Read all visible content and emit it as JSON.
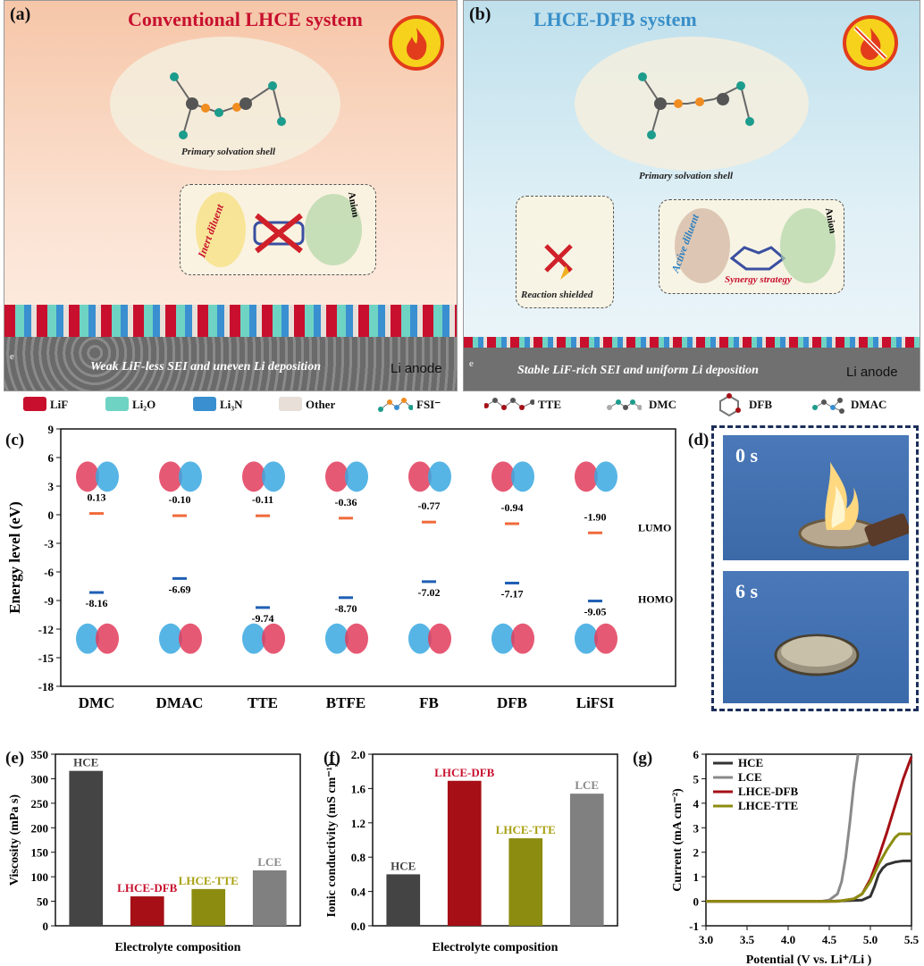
{
  "panel_a": {
    "label": "(a)",
    "title": "Conventional LHCE system",
    "shell_caption": "Primary solvation shell",
    "diluent_label": "Inert diluent",
    "anion_label": "Anion",
    "sei_text": "Weak LiF-less SEI and uneven Li deposition",
    "electron": "e",
    "anode_label": "Li anode"
  },
  "panel_b": {
    "label": "(b)",
    "title": "LHCE-DFB system",
    "shell_caption": "Primary solvation shell",
    "shielded_label": "Reaction shielded",
    "diluent_label": "Active diluent",
    "anion_label": "Anion",
    "synergy_label": "Synergy strategy",
    "sei_text": "Stable LiF-rich SEI and uniform Li deposition",
    "electron": "e",
    "anode_label": "Li anode"
  },
  "legend": [
    {
      "label": "LiF",
      "color": "#c8102e"
    },
    {
      "label": "Li₂O",
      "color": "#6fd3c4"
    },
    {
      "label": "Li₃N",
      "color": "#3a8fd0"
    },
    {
      "label": "Other",
      "color": "#e8e0d8"
    },
    {
      "label": "FSI⁻",
      "icon": "fsi-molecule-icon"
    },
    {
      "label": "TTE",
      "icon": "tte-molecule-icon"
    },
    {
      "label": "DMC",
      "icon": "dmc-molecule-icon"
    },
    {
      "label": "DFB",
      "icon": "dfb-molecule-icon"
    },
    {
      "label": "DMAC",
      "icon": "dmac-molecule-icon"
    }
  ],
  "panel_labels": {
    "c": "(c)",
    "d": "(d)",
    "e": "(e)",
    "f": "(f)",
    "g": "(g)"
  },
  "photos": [
    {
      "time": "0 s"
    },
    {
      "time": "6 s"
    }
  ],
  "chart_data": [
    {
      "panel": "c",
      "type": "scatter",
      "ylabel": "Energy level (eV)",
      "ylim": [
        -18,
        9
      ],
      "yticks": [
        9,
        6,
        3,
        0,
        -3,
        -6,
        -9,
        -12,
        -15,
        -18
      ],
      "categories": [
        "DMC",
        "DMAC",
        "TTE",
        "BTFE",
        "FB",
        "DFB",
        "LiFSI"
      ],
      "series": [
        {
          "name": "LUMO",
          "color": "#f06a3a",
          "values": [
            0.13,
            -0.1,
            -0.11,
            -0.36,
            -0.77,
            -0.94,
            -1.9
          ],
          "labels": [
            "0.13",
            "-0.10",
            "-0.11",
            "-0.36",
            "-0.77",
            "-0.94",
            "-1.90"
          ]
        },
        {
          "name": "HOMO",
          "color": "#1f5fb4",
          "values": [
            -8.16,
            -6.69,
            -9.74,
            -8.7,
            -7.02,
            -7.17,
            -9.05
          ],
          "labels": [
            "-8.16",
            "-6.69",
            "-9.74",
            "-8.70",
            "-7.02",
            "-7.17",
            "-9.05"
          ]
        }
      ]
    },
    {
      "panel": "e",
      "type": "bar",
      "xlabel": "Electrolyte composition",
      "ylabel": "Viscosity (mPa s)",
      "ylim": [
        0,
        350
      ],
      "yticks": [
        0,
        50,
        100,
        150,
        200,
        250,
        300,
        350
      ],
      "categories": [
        "HCE",
        "LHCE-DFB",
        "LHCE-TTE",
        "LCE"
      ],
      "values": [
        316,
        60,
        75,
        113
      ],
      "colors": [
        "#444444",
        "#a50f15",
        "#8c8c10",
        "#808080"
      ]
    },
    {
      "panel": "f",
      "type": "bar",
      "xlabel": "Electrolyte composition",
      "ylabel": "Ionic conductivity (mS cm⁻¹)",
      "ylim": [
        0,
        2.0
      ],
      "yticks": [
        "0.0",
        "0.4",
        "0.8",
        "1.2",
        "1.6",
        "2.0"
      ],
      "categories": [
        "HCE",
        "LHCE-DFB",
        "LHCE-TTE",
        "LCE"
      ],
      "values": [
        0.6,
        1.69,
        1.02,
        1.54
      ],
      "colors": [
        "#444444",
        "#a50f15",
        "#8c8c10",
        "#808080"
      ]
    },
    {
      "panel": "g",
      "type": "line",
      "xlabel": "Potential (V vs. Li⁺/Li )",
      "ylabel": "Current (mA cm⁻²)",
      "xlim": [
        3.0,
        5.5
      ],
      "ylim": [
        -1,
        6
      ],
      "xticks": [
        "3.0",
        "3.5",
        "4.0",
        "4.5",
        "5.0",
        "5.5"
      ],
      "yticks": [
        -1,
        0,
        1,
        2,
        3,
        4,
        5,
        6
      ],
      "legend_position": "top-left",
      "series": [
        {
          "name": "HCE",
          "color": "#333333",
          "x": [
            3.0,
            4.5,
            4.9,
            5.0,
            5.05,
            5.1,
            5.15,
            5.2,
            5.3,
            5.4,
            5.5
          ],
          "y": [
            0.0,
            0.0,
            0.05,
            0.2,
            0.6,
            1.1,
            1.35,
            1.5,
            1.6,
            1.65,
            1.65
          ]
        },
        {
          "name": "LCE",
          "color": "#8a8a8a",
          "x": [
            3.0,
            4.4,
            4.5,
            4.6,
            4.65,
            4.7,
            4.75,
            4.8,
            4.85
          ],
          "y": [
            0.0,
            0.0,
            0.05,
            0.3,
            0.8,
            1.8,
            3.2,
            4.8,
            6.0
          ]
        },
        {
          "name": "LHCE-DFB",
          "color": "#a50f15",
          "x": [
            3.0,
            4.6,
            4.8,
            4.9,
            5.0,
            5.1,
            5.2,
            5.3,
            5.4,
            5.5
          ],
          "y": [
            0.0,
            0.0,
            0.1,
            0.3,
            0.9,
            1.8,
            2.8,
            3.9,
            5.0,
            5.9
          ]
        },
        {
          "name": "LHCE-TTE",
          "color": "#8c8c10",
          "x": [
            3.0,
            4.6,
            4.8,
            4.9,
            5.0,
            5.1,
            5.2,
            5.3,
            5.35,
            5.5
          ],
          "y": [
            0.0,
            0.0,
            0.1,
            0.3,
            0.8,
            1.5,
            2.1,
            2.6,
            2.75,
            2.75
          ]
        }
      ]
    }
  ]
}
